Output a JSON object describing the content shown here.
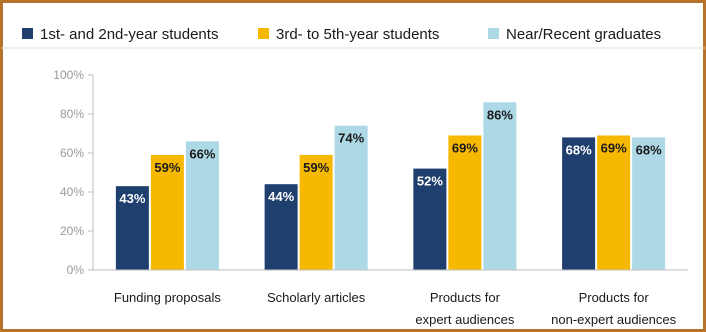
{
  "chart_data": {
    "type": "bar",
    "categories": [
      [
        "Funding proposals"
      ],
      [
        "Scholarly articles"
      ],
      [
        "Products for",
        "expert audiences"
      ],
      [
        "Products for",
        "non-expert audiences"
      ]
    ],
    "series": [
      {
        "name": "1st- and 2nd-year students",
        "values": [
          43,
          44,
          52,
          68
        ],
        "color": "#1f3f6e",
        "label_color": "#ffffff"
      },
      {
        "name": "3rd- to 5th-year students",
        "values": [
          59,
          59,
          69,
          69
        ],
        "color": "#f7b800",
        "label_color": "#1a1a1a"
      },
      {
        "name": "Near/Recent graduates",
        "values": [
          66,
          74,
          86,
          68
        ],
        "color": "#add8e6",
        "label_color": "#1a1a1a"
      }
    ],
    "yticks": [
      "0%",
      "20%",
      "40%",
      "60%",
      "80%",
      "100%"
    ],
    "ylim": [
      0,
      100
    ],
    "grid": false,
    "legend_position": "top",
    "value_suffix": "%"
  },
  "colors": {
    "frame": "#b8732a",
    "axis": "#bfbfbf"
  }
}
